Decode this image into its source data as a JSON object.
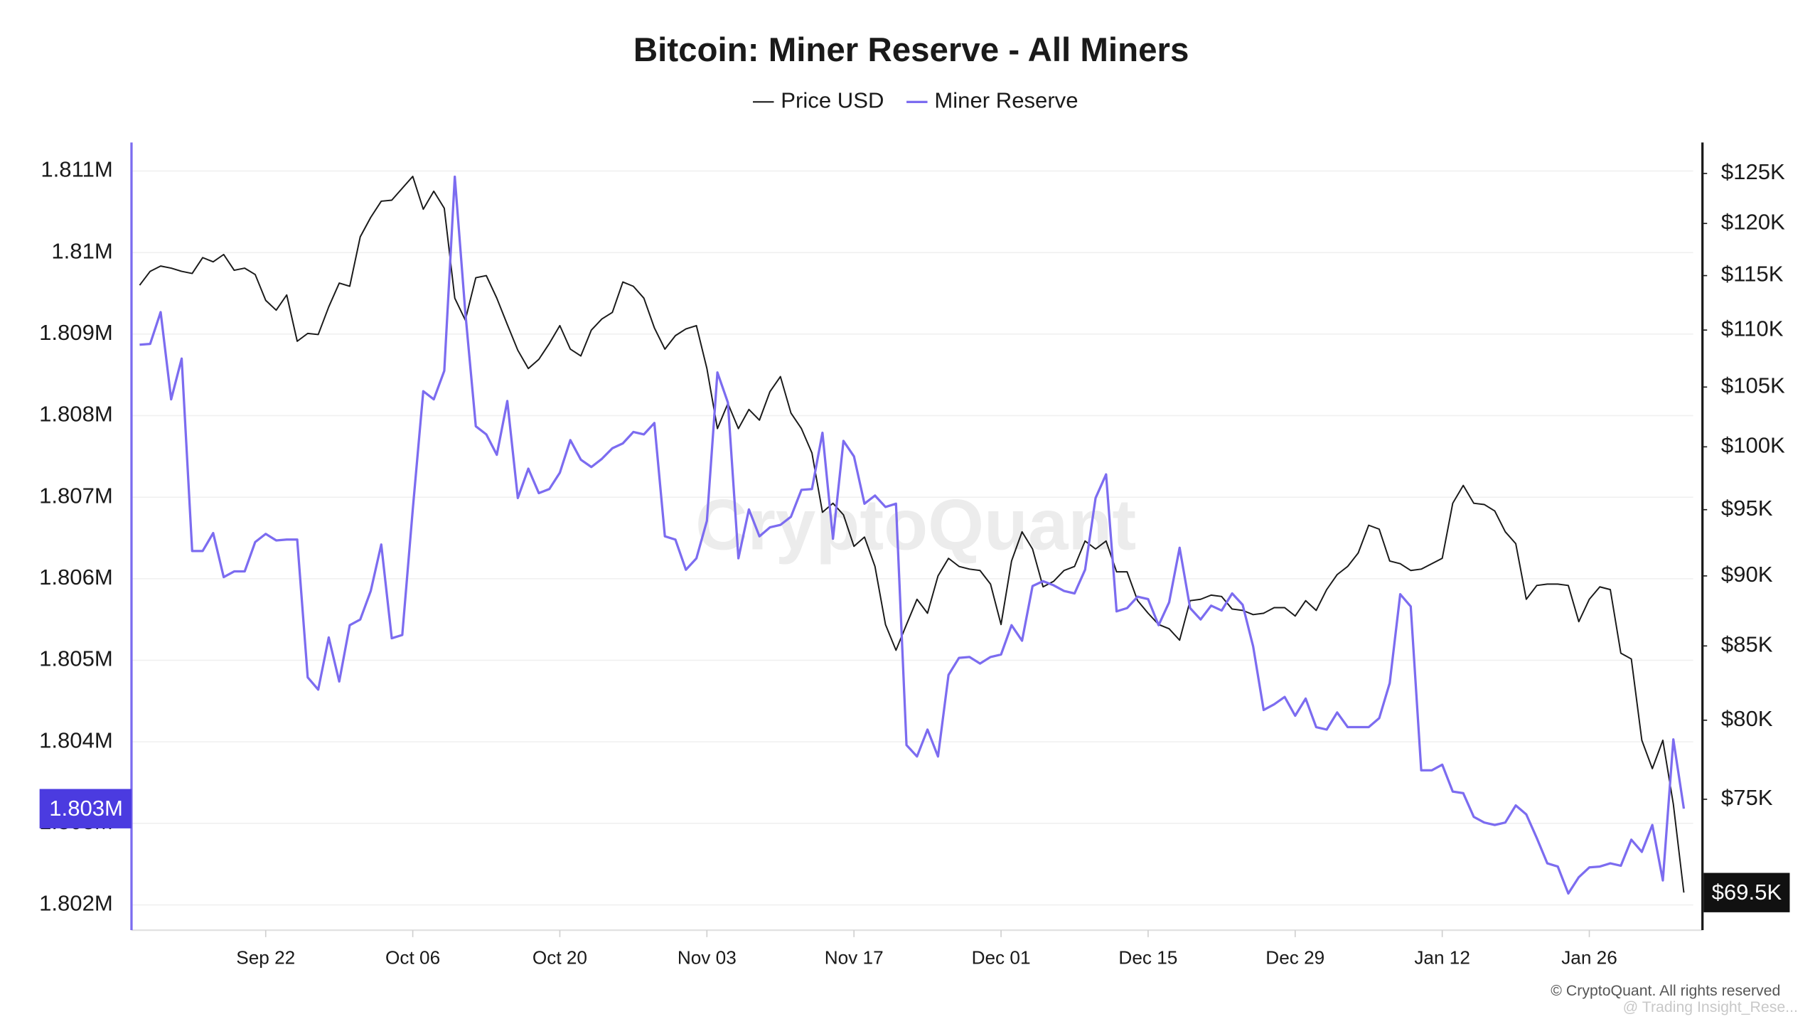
{
  "chart_data": {
    "type": "line",
    "title": "Bitcoin: Miner Reserve - All Miners",
    "watermark": "CryptoQuant",
    "credit": "© CryptoQuant. All rights reserved",
    "source_note": "@ Trading Insight_Rese...",
    "categories": [
      null,
      null,
      null,
      null,
      null,
      null,
      null,
      null,
      null,
      null,
      null,
      null,
      "Sep 22",
      null,
      null,
      null,
      null,
      null,
      null,
      null,
      null,
      null,
      null,
      null,
      null,
      null,
      "Oct 06",
      null,
      null,
      null,
      null,
      null,
      null,
      null,
      null,
      null,
      null,
      null,
      null,
      null,
      "Oct 20",
      null,
      null,
      null,
      null,
      null,
      null,
      null,
      null,
      null,
      null,
      null,
      null,
      null,
      "Nov 03",
      null,
      null,
      null,
      null,
      null,
      null,
      null,
      null,
      null,
      null,
      null,
      null,
      null,
      "Nov 17",
      null,
      null,
      null,
      null,
      null,
      null,
      null,
      null,
      null,
      null,
      null,
      null,
      null,
      "Dec 01",
      null,
      null,
      null,
      null,
      null,
      null,
      null,
      null,
      null,
      null,
      null,
      null,
      null,
      "Dec 15",
      null,
      null,
      null,
      null,
      null,
      null,
      null,
      null,
      null,
      null,
      null,
      null,
      null,
      "Dec 29",
      null,
      null,
      null,
      null,
      null,
      null,
      null,
      null,
      null,
      null,
      null,
      null,
      null,
      "Jan 12",
      null,
      null,
      null,
      null,
      null,
      null,
      null,
      null,
      null,
      null,
      null,
      null,
      null,
      "Jan 26",
      null,
      null,
      null,
      null,
      null,
      null,
      null,
      null,
      null
    ],
    "series": [
      {
        "name": "Price USD",
        "color": "#1a1a1a",
        "axis": "y2",
        "values": [
          114100,
          115400,
          115900,
          115700,
          115400,
          115200,
          116700,
          116300,
          117000,
          115500,
          115700,
          115100,
          112700,
          111800,
          113200,
          109000,
          109700,
          109600,
          112100,
          114300,
          114000,
          118700,
          120600,
          122200,
          122300,
          123500,
          124700,
          121400,
          123200,
          121500,
          112900,
          110900,
          114800,
          115000,
          112900,
          110500,
          108200,
          106600,
          107400,
          108800,
          110400,
          108300,
          107700,
          110000,
          111000,
          111600,
          114400,
          114000,
          112900,
          110200,
          108300,
          109500,
          110100,
          110400,
          106600,
          101500,
          103600,
          101500,
          103100,
          102200,
          104600,
          105900,
          102800,
          101500,
          99500,
          94800,
          95500,
          94600,
          92200,
          92900,
          90700,
          86500,
          84700,
          86500,
          88300,
          87300,
          90000,
          91300,
          90700,
          90500,
          90400,
          89400,
          86500,
          91100,
          93300,
          92000,
          89200,
          89600,
          90400,
          90700,
          92600,
          92000,
          92600,
          90300,
          90300,
          88200,
          87300,
          86500,
          86200,
          85400,
          88200,
          88300,
          88600,
          88500,
          87600,
          87500,
          87200,
          87300,
          87700,
          87700,
          87100,
          88200,
          87500,
          89000,
          90100,
          90700,
          91700,
          93800,
          93500,
          91100,
          90900,
          90400,
          90500,
          90900,
          91300,
          95500,
          96900,
          95500,
          95400,
          94900,
          93300,
          92400,
          88300,
          89300,
          89400,
          89400,
          89300,
          86700,
          88300,
          89200,
          89000,
          84500,
          84100,
          78700,
          76900,
          78700,
          74700,
          69500
        ],
        "value_labels": [
          null,
          null,
          null,
          null,
          null,
          null,
          null,
          null,
          null,
          null,
          null,
          null,
          null,
          null,
          null,
          null,
          null,
          null,
          null,
          null,
          null,
          null,
          null,
          null,
          null,
          null,
          null,
          null,
          null,
          null,
          null,
          null,
          null,
          null,
          null,
          null,
          null,
          null,
          null,
          null,
          null,
          null,
          null,
          null,
          null,
          null,
          null,
          null,
          null,
          null,
          null,
          null,
          null,
          null,
          null,
          null,
          null,
          null,
          null,
          null,
          null,
          null,
          null,
          null,
          null,
          null,
          null,
          null,
          null,
          null,
          null,
          null,
          null,
          null,
          null,
          null,
          null,
          null,
          null,
          null,
          null,
          null,
          null,
          null,
          null,
          null,
          null,
          null,
          null,
          null,
          null,
          null,
          null,
          null,
          null,
          null,
          null,
          null,
          null,
          null,
          null,
          null,
          null,
          null,
          null,
          null,
          null,
          null,
          null,
          null,
          null,
          null,
          null,
          null,
          null,
          null,
          null,
          null,
          null,
          null,
          null,
          null,
          null,
          null,
          null,
          null,
          null,
          null,
          null,
          null,
          null,
          null,
          null,
          null,
          null,
          null,
          null,
          null,
          null,
          null,
          null,
          null,
          null,
          null,
          null,
          null,
          null,
          "$69.5K"
        ]
      },
      {
        "name": "Miner Reserve",
        "color": "#7c6cf0",
        "axis": "y",
        "values": [
          1808870,
          1808880,
          1809270,
          1808200,
          1808700,
          1806340,
          1806340,
          1806560,
          1806020,
          1806090,
          1806090,
          1806450,
          1806550,
          1806470,
          1806480,
          1806480,
          1804790,
          1804640,
          1805280,
          1804740,
          1805430,
          1805500,
          1805850,
          1806420,
          1805270,
          1805310,
          1806850,
          1808300,
          1808200,
          1808550,
          1810930,
          1809270,
          1807870,
          1807770,
          1807520,
          1808180,
          1806990,
          1807350,
          1807050,
          1807100,
          1807300,
          1807700,
          1807460,
          1807370,
          1807470,
          1807600,
          1807660,
          1807800,
          1807770,
          1807910,
          1806520,
          1806480,
          1806110,
          1806250,
          1806710,
          1808530,
          1808160,
          1806250,
          1806850,
          1806520,
          1806630,
          1806660,
          1806760,
          1807090,
          1807100,
          1807790,
          1806490,
          1807690,
          1807500,
          1806920,
          1807020,
          1806880,
          1806920,
          1803960,
          1803820,
          1804150,
          1803820,
          1804820,
          1805030,
          1805040,
          1804960,
          1805040,
          1805070,
          1805430,
          1805240,
          1805910,
          1805970,
          1805920,
          1805850,
          1805820,
          1806110,
          1806990,
          1807280,
          1805600,
          1805640,
          1805780,
          1805750,
          1805430,
          1805710,
          1806380,
          1805640,
          1805500,
          1805670,
          1805610,
          1805820,
          1805680,
          1805170,
          1804390,
          1804460,
          1804550,
          1804320,
          1804530,
          1804180,
          1804150,
          1804360,
          1804180,
          1804180,
          1804180,
          1804290,
          1804720,
          1805810,
          1805660,
          1803650,
          1803650,
          1803720,
          1803390,
          1803370,
          1803080,
          1803010,
          1802980,
          1803010,
          1803220,
          1803110,
          1802820,
          1802510,
          1802470,
          1802140,
          1802340,
          1802460,
          1802470,
          1802510,
          1802480,
          1802800,
          1802650,
          1802980,
          1802300,
          1804030,
          1803180
        ],
        "value_labels": [
          null,
          null,
          null,
          null,
          null,
          null,
          null,
          null,
          null,
          null,
          null,
          null,
          null,
          null,
          null,
          null,
          null,
          null,
          null,
          null,
          null,
          null,
          null,
          null,
          null,
          null,
          null,
          null,
          null,
          null,
          null,
          null,
          null,
          null,
          null,
          null,
          null,
          null,
          null,
          null,
          null,
          null,
          null,
          null,
          null,
          null,
          null,
          null,
          null,
          null,
          null,
          null,
          null,
          null,
          null,
          null,
          null,
          null,
          null,
          null,
          null,
          null,
          null,
          null,
          null,
          null,
          null,
          null,
          null,
          null,
          null,
          null,
          null,
          null,
          null,
          null,
          null,
          null,
          null,
          null,
          null,
          null,
          null,
          null,
          null,
          null,
          null,
          null,
          null,
          null,
          null,
          null,
          null,
          null,
          null,
          null,
          null,
          null,
          null,
          null,
          null,
          null,
          null,
          null,
          null,
          null,
          null,
          null,
          null,
          null,
          null,
          null,
          null,
          null,
          null,
          null,
          null,
          null,
          null,
          null,
          null,
          null,
          null,
          null,
          null,
          null,
          null,
          null,
          null,
          null,
          null,
          null,
          null,
          null,
          null,
          null,
          null,
          null,
          null,
          null,
          null,
          null,
          null,
          null,
          null,
          null,
          null,
          "1.803M"
        ]
      }
    ],
    "ylim": [
      1801690,
      1811350
    ],
    "yticks": [
      {
        "value": 1802000,
        "label": "1.802M"
      },
      {
        "value": 1803000,
        "label": "1.803M"
      },
      {
        "value": 1804000,
        "label": "1.804M"
      },
      {
        "value": 1805000,
        "label": "1.805M"
      },
      {
        "value": 1806000,
        "label": "1.806M"
      },
      {
        "value": 1807000,
        "label": "1.807M"
      },
      {
        "value": 1808000,
        "label": "1.808M"
      },
      {
        "value": 1809000,
        "label": "1.809M"
      },
      {
        "value": 1810000,
        "label": "1.81M"
      },
      {
        "value": 1811000,
        "label": "1.811M"
      }
    ],
    "y2lim": [
      67400,
      128200
    ],
    "y2log": true,
    "y2ticks": [
      {
        "value": 75000,
        "label": "$75K"
      },
      {
        "value": 80000,
        "label": "$80K"
      },
      {
        "value": 85000,
        "label": "$85K"
      },
      {
        "value": 90000,
        "label": "$90K"
      },
      {
        "value": 95000,
        "label": "$95K"
      },
      {
        "value": 100000,
        "label": "$100K"
      },
      {
        "value": 105000,
        "label": "$105K"
      },
      {
        "value": 110000,
        "label": "$110K"
      },
      {
        "value": 115000,
        "label": "$115K"
      },
      {
        "value": 120000,
        "label": "$120K"
      },
      {
        "value": 125000,
        "label": "$125K"
      }
    ],
    "grid": true,
    "legend": "top"
  }
}
